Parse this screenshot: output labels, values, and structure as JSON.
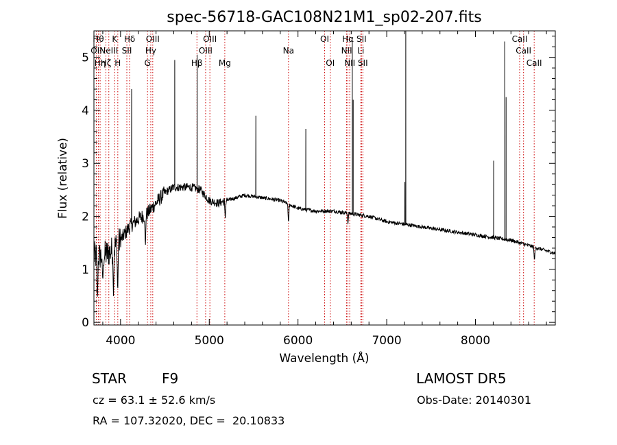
{
  "chart_data": {
    "type": "line",
    "title": "spec-56718-GAC108N21M1_sp02-207.fits",
    "xlabel": "Wavelength (Å)",
    "ylabel": "Flux (relative)",
    "xlim": [
      3700,
      8900
    ],
    "ylim": [
      -0.05,
      5.5
    ],
    "xticks": [
      "4000",
      "5000",
      "6000",
      "7000",
      "8000"
    ],
    "yticks": [
      "0",
      "1",
      "2",
      "3",
      "4",
      "5"
    ],
    "grid": false,
    "line_color": "#000000",
    "marker_color": "#cc0000",
    "line_markers": [
      {
        "wl": 3727,
        "label": "OII",
        "row": 2
      },
      {
        "wl": 3750,
        "label": "Hθ",
        "row": 1
      },
      {
        "wl": 3770,
        "label": "Hη",
        "row": 3
      },
      {
        "wl": 3835,
        "label": "Hζ",
        "row": 3
      },
      {
        "wl": 3868,
        "label": "NeIII",
        "row": 2
      },
      {
        "wl": 3934,
        "label": "K",
        "row": 1
      },
      {
        "wl": 3969,
        "label": "H",
        "row": 3
      },
      {
        "wl": 4071,
        "label": "SII",
        "row": 2
      },
      {
        "wl": 4102,
        "label": "Hδ",
        "row": 1
      },
      {
        "wl": 4304,
        "label": "G",
        "row": 3
      },
      {
        "wl": 4341,
        "label": "Hγ",
        "row": 2
      },
      {
        "wl": 4363,
        "label": "OIII",
        "row": 1
      },
      {
        "wl": 4861,
        "label": "Hβ",
        "row": 3
      },
      {
        "wl": 4959,
        "label": "OIII",
        "row": 2
      },
      {
        "wl": 5007,
        "label": "OIII",
        "row": 1
      },
      {
        "wl": 5175,
        "label": "Mg",
        "row": 3
      },
      {
        "wl": 5893,
        "label": "Na",
        "row": 2
      },
      {
        "wl": 6300,
        "label": "OI",
        "row": 1
      },
      {
        "wl": 6364,
        "label": "OI",
        "row": 3
      },
      {
        "wl": 6548,
        "label": "NII",
        "row": 2
      },
      {
        "wl": 6563,
        "label": "Hα",
        "row": 1
      },
      {
        "wl": 6583,
        "label": "NII",
        "row": 3
      },
      {
        "wl": 6708,
        "label": "Li",
        "row": 2
      },
      {
        "wl": 6716,
        "label": "SII",
        "row": 1
      },
      {
        "wl": 6731,
        "label": "SII",
        "row": 3
      },
      {
        "wl": 8498,
        "label": "CaII",
        "row": 1
      },
      {
        "wl": 8542,
        "label": "CaII",
        "row": 2
      },
      {
        "wl": 8662,
        "label": "CaII",
        "row": 3
      }
    ],
    "continuum": [
      [
        3700,
        1.25
      ],
      [
        3800,
        1.25
      ],
      [
        3900,
        1.35
      ],
      [
        4000,
        1.55
      ],
      [
        4100,
        1.8
      ],
      [
        4200,
        1.95
      ],
      [
        4300,
        2.05
      ],
      [
        4400,
        2.25
      ],
      [
        4500,
        2.45
      ],
      [
        4600,
        2.55
      ],
      [
        4700,
        2.55
      ],
      [
        4800,
        2.55
      ],
      [
        4900,
        2.5
      ],
      [
        5000,
        2.3
      ],
      [
        5100,
        2.25
      ],
      [
        5200,
        2.3
      ],
      [
        5400,
        2.4
      ],
      [
        5600,
        2.35
      ],
      [
        5800,
        2.3
      ],
      [
        6000,
        2.15
      ],
      [
        6200,
        2.1
      ],
      [
        6400,
        2.1
      ],
      [
        6600,
        2.05
      ],
      [
        6800,
        2.0
      ],
      [
        7000,
        1.9
      ],
      [
        7200,
        1.85
      ],
      [
        7400,
        1.8
      ],
      [
        7600,
        1.75
      ],
      [
        7800,
        1.7
      ],
      [
        8000,
        1.65
      ],
      [
        8200,
        1.6
      ],
      [
        8400,
        1.55
      ],
      [
        8600,
        1.45
      ],
      [
        8800,
        1.35
      ],
      [
        8900,
        1.3
      ]
    ],
    "emission_spikes": [
      [
        4125,
        4.4
      ],
      [
        4611,
        4.95
      ],
      [
        4863,
        5.05
      ],
      [
        5525,
        3.9
      ],
      [
        6088,
        3.65
      ],
      [
        6612,
        5.3
      ],
      [
        6622,
        4.2
      ],
      [
        7205,
        2.65
      ],
      [
        7215,
        5.5
      ],
      [
        8205,
        3.05
      ],
      [
        8330,
        5.3
      ],
      [
        8345,
        4.25
      ]
    ],
    "absorption_dips": [
      [
        3740,
        0.35
      ],
      [
        3800,
        0.75
      ],
      [
        3920,
        0.45
      ],
      [
        3968,
        0.5
      ],
      [
        4280,
        1.4
      ],
      [
        5180,
        1.95
      ],
      [
        5893,
        1.85
      ],
      [
        6563,
        1.85
      ],
      [
        8665,
        1.15
      ]
    ]
  },
  "info": {
    "object_class": "STAR",
    "subclass": "F9",
    "survey": "LAMOST DR5",
    "redshift": "cz = 63.1 ± 52.6 km/s",
    "obs_date": "Obs-Date: 20140301",
    "coords": "RA = 107.32020, DEC =  20.10833"
  }
}
